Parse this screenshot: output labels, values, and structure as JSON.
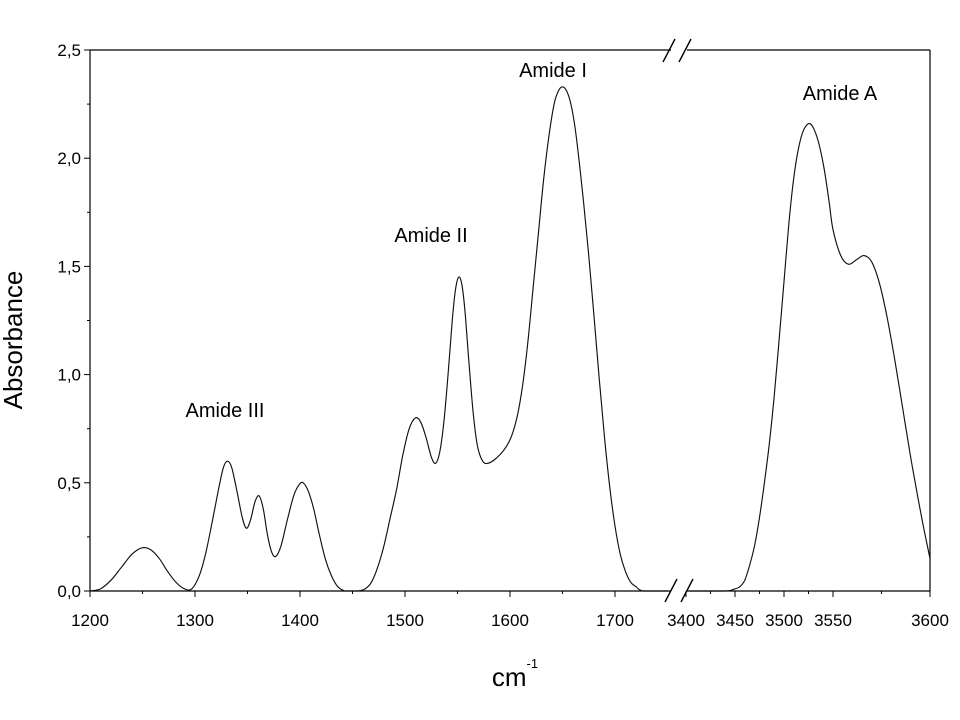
{
  "chart_data": {
    "type": "line",
    "xlabel": "cm",
    "xlabel_superscript": "-1",
    "ylabel": "Absorbance",
    "ylim": [
      0,
      2.5
    ],
    "y_ticks": [
      {
        "value": 0.0,
        "label": "0,0"
      },
      {
        "value": 0.5,
        "label": "0,5"
      },
      {
        "value": 1.0,
        "label": "1,0"
      },
      {
        "value": 1.5,
        "label": "1,5"
      },
      {
        "value": 2.0,
        "label": "2,0"
      },
      {
        "value": 2.5,
        "label": "2,5"
      }
    ],
    "x_axis_break": true,
    "x_segments": [
      {
        "range": [
          1200,
          1750
        ],
        "ticks": [
          {
            "value": 1200,
            "label": "1200"
          },
          {
            "value": 1300,
            "label": "1300"
          },
          {
            "value": 1400,
            "label": "1400"
          },
          {
            "value": 1500,
            "label": "1500"
          },
          {
            "value": 1600,
            "label": "1600"
          },
          {
            "value": 1700,
            "label": "1700"
          }
        ]
      },
      {
        "range": [
          3400,
          3600
        ],
        "ticks": [
          {
            "value": 3400,
            "label": "3400"
          },
          {
            "value": 3450,
            "label": "3450"
          },
          {
            "value": 3500,
            "label": "3500"
          },
          {
            "value": 3550,
            "label": "3550"
          },
          {
            "value": 3600,
            "label": "3600"
          }
        ]
      }
    ],
    "grid": false,
    "legend": false,
    "annotations": [
      "Amide III",
      "Amide II",
      "Amide I",
      "Amide A"
    ],
    "series": [
      {
        "segments": [
          {
            "x_segment": 0,
            "points": [
              [
                1200,
                0.0
              ],
              [
                1210,
                0.01
              ],
              [
                1220,
                0.05
              ],
              [
                1230,
                0.11
              ],
              [
                1240,
                0.17
              ],
              [
                1250,
                0.2
              ],
              [
                1258,
                0.19
              ],
              [
                1266,
                0.15
              ],
              [
                1274,
                0.09
              ],
              [
                1282,
                0.04
              ],
              [
                1290,
                0.01
              ],
              [
                1297,
                0.01
              ],
              [
                1304,
                0.07
              ],
              [
                1310,
                0.17
              ],
              [
                1316,
                0.31
              ],
              [
                1322,
                0.46
              ],
              [
                1327,
                0.57
              ],
              [
                1331,
                0.6
              ],
              [
                1335,
                0.57
              ],
              [
                1340,
                0.46
              ],
              [
                1345,
                0.34
              ],
              [
                1349,
                0.29
              ],
              [
                1353,
                0.33
              ],
              [
                1357,
                0.41
              ],
              [
                1361,
                0.44
              ],
              [
                1365,
                0.38
              ],
              [
                1369,
                0.26
              ],
              [
                1373,
                0.18
              ],
              [
                1377,
                0.16
              ],
              [
                1382,
                0.21
              ],
              [
                1388,
                0.33
              ],
              [
                1394,
                0.44
              ],
              [
                1399,
                0.49
              ],
              [
                1403,
                0.5
              ],
              [
                1408,
                0.46
              ],
              [
                1413,
                0.38
              ],
              [
                1418,
                0.27
              ],
              [
                1424,
                0.15
              ],
              [
                1430,
                0.07
              ],
              [
                1436,
                0.02
              ],
              [
                1443,
                0.0
              ],
              [
                1455,
                0.0
              ],
              [
                1462,
                0.01
              ],
              [
                1468,
                0.04
              ],
              [
                1474,
                0.11
              ],
              [
                1480,
                0.21
              ],
              [
                1486,
                0.34
              ],
              [
                1492,
                0.47
              ],
              [
                1498,
                0.63
              ],
              [
                1504,
                0.75
              ],
              [
                1510,
                0.8
              ],
              [
                1515,
                0.78
              ],
              [
                1520,
                0.71
              ],
              [
                1525,
                0.62
              ],
              [
                1529,
                0.59
              ],
              [
                1533,
                0.64
              ],
              [
                1537,
                0.78
              ],
              [
                1541,
                1.0
              ],
              [
                1545,
                1.25
              ],
              [
                1548,
                1.39
              ],
              [
                1551,
                1.45
              ],
              [
                1554,
                1.42
              ],
              [
                1557,
                1.3
              ],
              [
                1561,
                1.05
              ],
              [
                1565,
                0.82
              ],
              [
                1569,
                0.67
              ],
              [
                1574,
                0.6
              ],
              [
                1579,
                0.59
              ],
              [
                1586,
                0.61
              ],
              [
                1594,
                0.65
              ],
              [
                1601,
                0.71
              ],
              [
                1607,
                0.81
              ],
              [
                1612,
                0.95
              ],
              [
                1617,
                1.15
              ],
              [
                1622,
                1.4
              ],
              [
                1627,
                1.65
              ],
              [
                1632,
                1.9
              ],
              [
                1637,
                2.1
              ],
              [
                1642,
                2.25
              ],
              [
                1646,
                2.31
              ],
              [
                1650,
                2.33
              ],
              [
                1654,
                2.31
              ],
              [
                1658,
                2.25
              ],
              [
                1662,
                2.14
              ],
              [
                1666,
                1.98
              ],
              [
                1670,
                1.8
              ],
              [
                1675,
                1.55
              ],
              [
                1680,
                1.27
              ],
              [
                1685,
                0.98
              ],
              [
                1690,
                0.71
              ],
              [
                1695,
                0.48
              ],
              [
                1700,
                0.3
              ],
              [
                1705,
                0.17
              ],
              [
                1710,
                0.09
              ],
              [
                1715,
                0.04
              ],
              [
                1720,
                0.02
              ],
              [
                1727,
                0.0
              ],
              [
                1750,
                0.0
              ]
            ]
          },
          {
            "x_segment": 1,
            "points": [
              [
                3404,
                0.0
              ],
              [
                3440,
                0.0
              ],
              [
                3450,
                0.01
              ],
              [
                3455,
                0.02
              ],
              [
                3460,
                0.05
              ],
              [
                3465,
                0.12
              ],
              [
                3470,
                0.21
              ],
              [
                3475,
                0.34
              ],
              [
                3480,
                0.5
              ],
              [
                3485,
                0.68
              ],
              [
                3490,
                0.9
              ],
              [
                3495,
                1.16
              ],
              [
                3500,
                1.43
              ],
              [
                3505,
                1.7
              ],
              [
                3510,
                1.91
              ],
              [
                3515,
                2.05
              ],
              [
                3520,
                2.13
              ],
              [
                3526,
                2.16
              ],
              [
                3531,
                2.13
              ],
              [
                3536,
                2.06
              ],
              [
                3541,
                1.95
              ],
              [
                3546,
                1.8
              ],
              [
                3550,
                1.67
              ],
              [
                3554,
                1.55
              ],
              [
                3558,
                1.51
              ],
              [
                3562,
                1.53
              ],
              [
                3566,
                1.55
              ],
              [
                3570,
                1.52
              ],
              [
                3574,
                1.42
              ],
              [
                3578,
                1.26
              ],
              [
                3582,
                1.06
              ],
              [
                3586,
                0.84
              ],
              [
                3590,
                0.62
              ],
              [
                3594,
                0.42
              ],
              [
                3597,
                0.28
              ],
              [
                3600,
                0.15
              ]
            ]
          }
        ]
      }
    ]
  }
}
